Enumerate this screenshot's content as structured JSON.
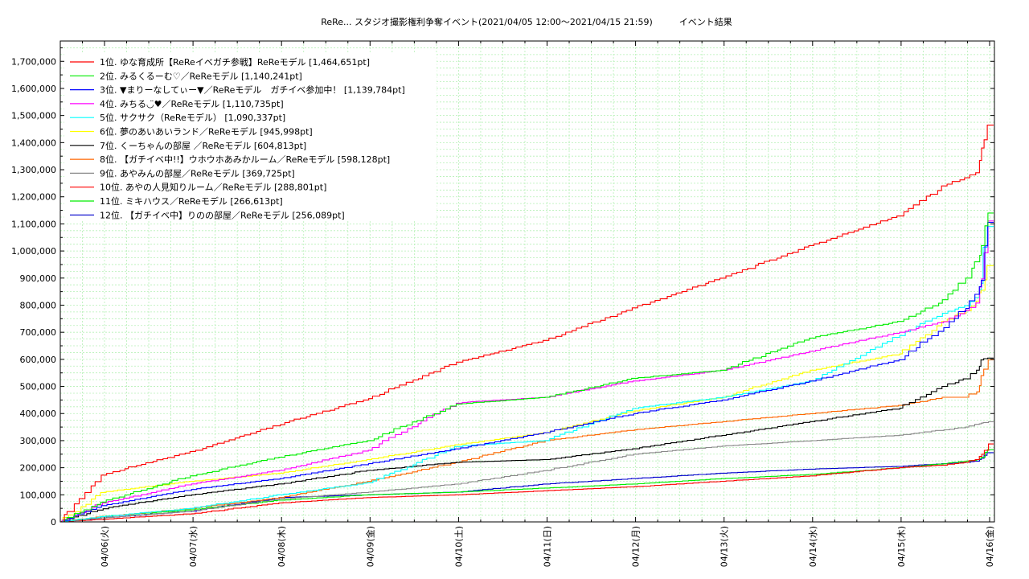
{
  "chart_data": {
    "type": "line",
    "title": "ReRe... スタジオ撮影権利争奪イベント(2021/04/05 12:00～2021/04/15 21:59)　　　イベント結果",
    "xlabel": "",
    "ylabel": "",
    "ylim": [
      0,
      1775000
    ],
    "xlim": [
      "2021-04-05 12:00",
      "2021-04-16 03:00"
    ],
    "y_ticks": [
      "0",
      "100,000",
      "200,000",
      "300,000",
      "400,000",
      "500,000",
      "600,000",
      "700,000",
      "800,000",
      "900,000",
      "1,000,000",
      "1,100,000",
      "1,200,000",
      "1,300,000",
      "1,400,000",
      "1,500,000",
      "1,600,000",
      "1,700,000"
    ],
    "x_ticks": [
      "04/06(火)",
      "04/07(水)",
      "04/08(木)",
      "04/09(金)",
      "04/10(土)",
      "04/11(日)",
      "04/12(月)",
      "04/13(火)",
      "04/14(水)",
      "04/15(木)",
      "04/16(金)"
    ],
    "grid": true,
    "legend_position": "top-left",
    "x_anchor_dates": [
      "04/05 12:00",
      "04/06 00:00",
      "04/07 00:00",
      "04/08 00:00",
      "04/09 00:00",
      "04/10 00:00",
      "04/11 00:00",
      "04/12 00:00",
      "04/13 00:00",
      "04/14 00:00",
      "04/15 00:00",
      "04/15 12:00",
      "04/15 18:00",
      "04/15 21:00",
      "04/15 22:00",
      "04/16 00:00"
    ],
    "series": [
      {
        "name": "1位. ゆな育成所【ReReイベガチ参戦】ReReモデル [1,464,651pt]",
        "color": "#ff0000",
        "values": [
          0,
          175000,
          260000,
          360000,
          455000,
          590000,
          670000,
          790000,
          900000,
          1020000,
          1130000,
          1240000,
          1270000,
          1290000,
          1380000,
          1464651
        ]
      },
      {
        "name": "2位. みるくるーむ♡／ReReモデル [1,140,241pt]",
        "color": "#00ee00",
        "values": [
          0,
          75000,
          170000,
          240000,
          300000,
          435000,
          460000,
          530000,
          560000,
          680000,
          740000,
          820000,
          900000,
          960000,
          1020000,
          1140241
        ]
      },
      {
        "name": "3位. ▼まりーなしてぃー▼／ReReモデル　ガチイベ参加中！ [1,139,784pt]",
        "color": "#0000ff",
        "values": [
          0,
          60000,
          120000,
          160000,
          215000,
          270000,
          330000,
          400000,
          450000,
          520000,
          600000,
          720000,
          790000,
          840000,
          900000,
          1139784
        ]
      },
      {
        "name": "4位. みちる◡̈♥／ReReモデル [1,110,735pt]",
        "color": "#ff00ff",
        "values": [
          0,
          70000,
          140000,
          190000,
          265000,
          440000,
          460000,
          520000,
          560000,
          630000,
          700000,
          740000,
          780000,
          810000,
          900000,
          1110735
        ]
      },
      {
        "name": "5位. サクサク（ReReモデル） [1,090,337pt]",
        "color": "#00ffff",
        "values": [
          0,
          20000,
          50000,
          100000,
          145000,
          280000,
          300000,
          420000,
          460000,
          520000,
          690000,
          770000,
          800000,
          830000,
          880000,
          1090337
        ]
      },
      {
        "name": "6位. 夢のあいあいランド／ReReモデル [945,998pt]",
        "color": "#ffff00",
        "values": [
          0,
          110000,
          150000,
          180000,
          230000,
          285000,
          330000,
          410000,
          460000,
          560000,
          620000,
          740000,
          780000,
          820000,
          860000,
          945998
        ]
      },
      {
        "name": "7位. くーちゃんの部屋 ／ReReモデル [604,813pt]",
        "color": "#000000",
        "values": [
          0,
          50000,
          100000,
          140000,
          190000,
          220000,
          230000,
          270000,
          320000,
          370000,
          420000,
          500000,
          530000,
          560000,
          600000,
          604813
        ]
      },
      {
        "name": "8位. 【ガチイベ中!!】ウホウホあみかルーム／ReReモデル [598,128pt]",
        "color": "#ff6600",
        "values": [
          0,
          20000,
          50000,
          90000,
          150000,
          220000,
          300000,
          340000,
          370000,
          400000,
          430000,
          460000,
          460000,
          480000,
          540000,
          598128
        ]
      },
      {
        "name": "9位. あやみんの部屋／ReReモデル [369,725pt]",
        "color": "#888888",
        "values": [
          0,
          15000,
          40000,
          85000,
          110000,
          140000,
          190000,
          250000,
          280000,
          300000,
          320000,
          340000,
          350000,
          360000,
          365000,
          369725
        ]
      },
      {
        "name": "10位. あやの人見知りルーム／ReReモデル [288,801pt]",
        "color": "#ff0000",
        "values": [
          0,
          10000,
          30000,
          70000,
          90000,
          100000,
          115000,
          130000,
          150000,
          170000,
          200000,
          210000,
          220000,
          230000,
          250000,
          288801
        ]
      },
      {
        "name": "11位. ミキハウス／ReReモデル [266,613pt]",
        "color": "#00ee00",
        "values": [
          0,
          20000,
          45000,
          80000,
          100000,
          110000,
          125000,
          140000,
          160000,
          175000,
          200000,
          215000,
          225000,
          230000,
          240000,
          266613
        ]
      },
      {
        "name": "12位. 【ガチイベ中】りのの部屋／ReReモデル [256,089pt]",
        "color": "#0000cc",
        "values": [
          0,
          15000,
          40000,
          90000,
          100000,
          110000,
          140000,
          160000,
          180000,
          195000,
          205000,
          215000,
          220000,
          225000,
          235000,
          256089
        ]
      }
    ]
  }
}
